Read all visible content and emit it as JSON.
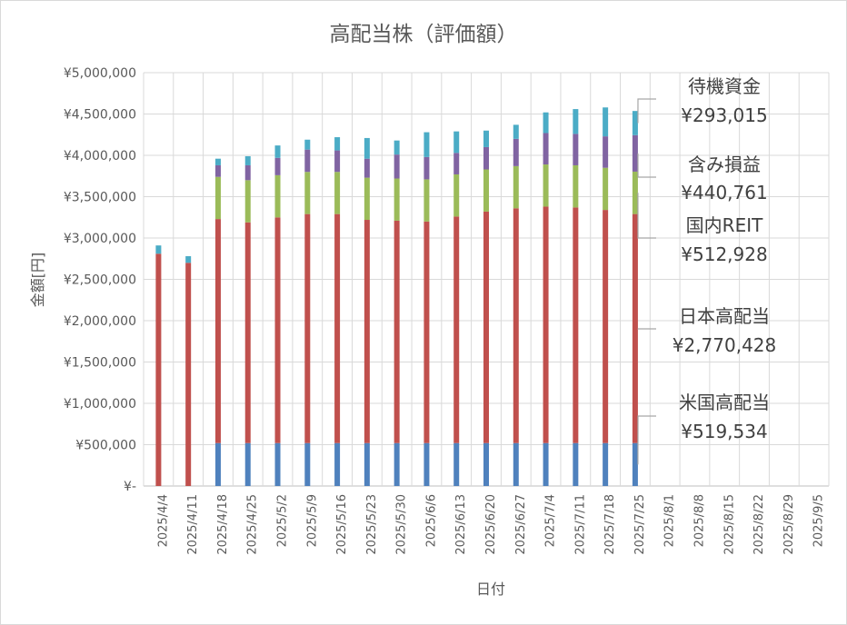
{
  "chart_data": {
    "type": "bar",
    "stacked": true,
    "title": "高配当株（評価額）",
    "xlabel": "日付",
    "ylabel": "金額[円]",
    "ylim": [
      0,
      5000000
    ],
    "y_ticks": [
      "¥-",
      "¥500,000",
      "¥1,000,000",
      "¥1,500,000",
      "¥2,000,000",
      "¥2,500,000",
      "¥3,000,000",
      "¥3,500,000",
      "¥4,000,000",
      "¥4,500,000",
      "¥5,000,000"
    ],
    "grid": true,
    "categories": [
      "2025/4/4",
      "2025/4/11",
      "2025/4/18",
      "2025/4/25",
      "2025/5/2",
      "2025/5/9",
      "2025/5/16",
      "2025/5/23",
      "2025/5/30",
      "2025/6/6",
      "2025/6/13",
      "2025/6/20",
      "2025/6/27",
      "2025/7/4",
      "2025/7/11",
      "2025/7/18",
      "2025/7/25",
      "2025/8/1",
      "2025/8/8",
      "2025/8/15",
      "2025/8/22",
      "2025/8/29",
      "2025/9/5"
    ],
    "series": [
      {
        "name": "米国高配当",
        "color": "#4f81bd",
        "values": [
          0,
          0,
          519534,
          519534,
          519534,
          519534,
          519534,
          519534,
          519534,
          519534,
          519534,
          519534,
          519534,
          519534,
          519534,
          519534,
          519534,
          null,
          null,
          null,
          null,
          null,
          null
        ]
      },
      {
        "name": "日本高配当",
        "color": "#c0504d",
        "values": [
          2810000,
          2700000,
          2710000,
          2670000,
          2730000,
          2770000,
          2770000,
          2700000,
          2690000,
          2680000,
          2740000,
          2800000,
          2840000,
          2860000,
          2850000,
          2820000,
          2770428,
          null,
          null,
          null,
          null,
          null,
          null
        ]
      },
      {
        "name": "国内REIT",
        "color": "#9bbb59",
        "values": [
          0,
          0,
          510000,
          510000,
          510000,
          510000,
          510000,
          510000,
          510000,
          510000,
          510000,
          510000,
          510000,
          510000,
          510000,
          510000,
          512928,
          null,
          null,
          null,
          null,
          null,
          null
        ]
      },
      {
        "name": "含み損益",
        "color": "#8064a2",
        "values": [
          0,
          0,
          140000,
          180000,
          210000,
          270000,
          260000,
          230000,
          290000,
          270000,
          260000,
          270000,
          330000,
          380000,
          380000,
          380000,
          440761,
          null,
          null,
          null,
          null,
          null,
          null
        ]
      },
      {
        "name": "待機資金",
        "color": "#4bacc6",
        "values": [
          100000,
          80000,
          80000,
          110000,
          150000,
          120000,
          160000,
          250000,
          170000,
          300000,
          260000,
          200000,
          170000,
          250000,
          300000,
          350000,
          293015,
          null,
          null,
          null,
          null,
          null,
          null
        ]
      }
    ],
    "annotations": [
      {
        "label": "待機資金",
        "value": "¥293,015"
      },
      {
        "label": "含み損益",
        "value": "¥440,761"
      },
      {
        "label": "国内REIT",
        "value": "¥512,928"
      },
      {
        "label": "日本高配当",
        "value": "¥2,770,428"
      },
      {
        "label": "米国高配当",
        "value": "¥519,534"
      }
    ]
  }
}
